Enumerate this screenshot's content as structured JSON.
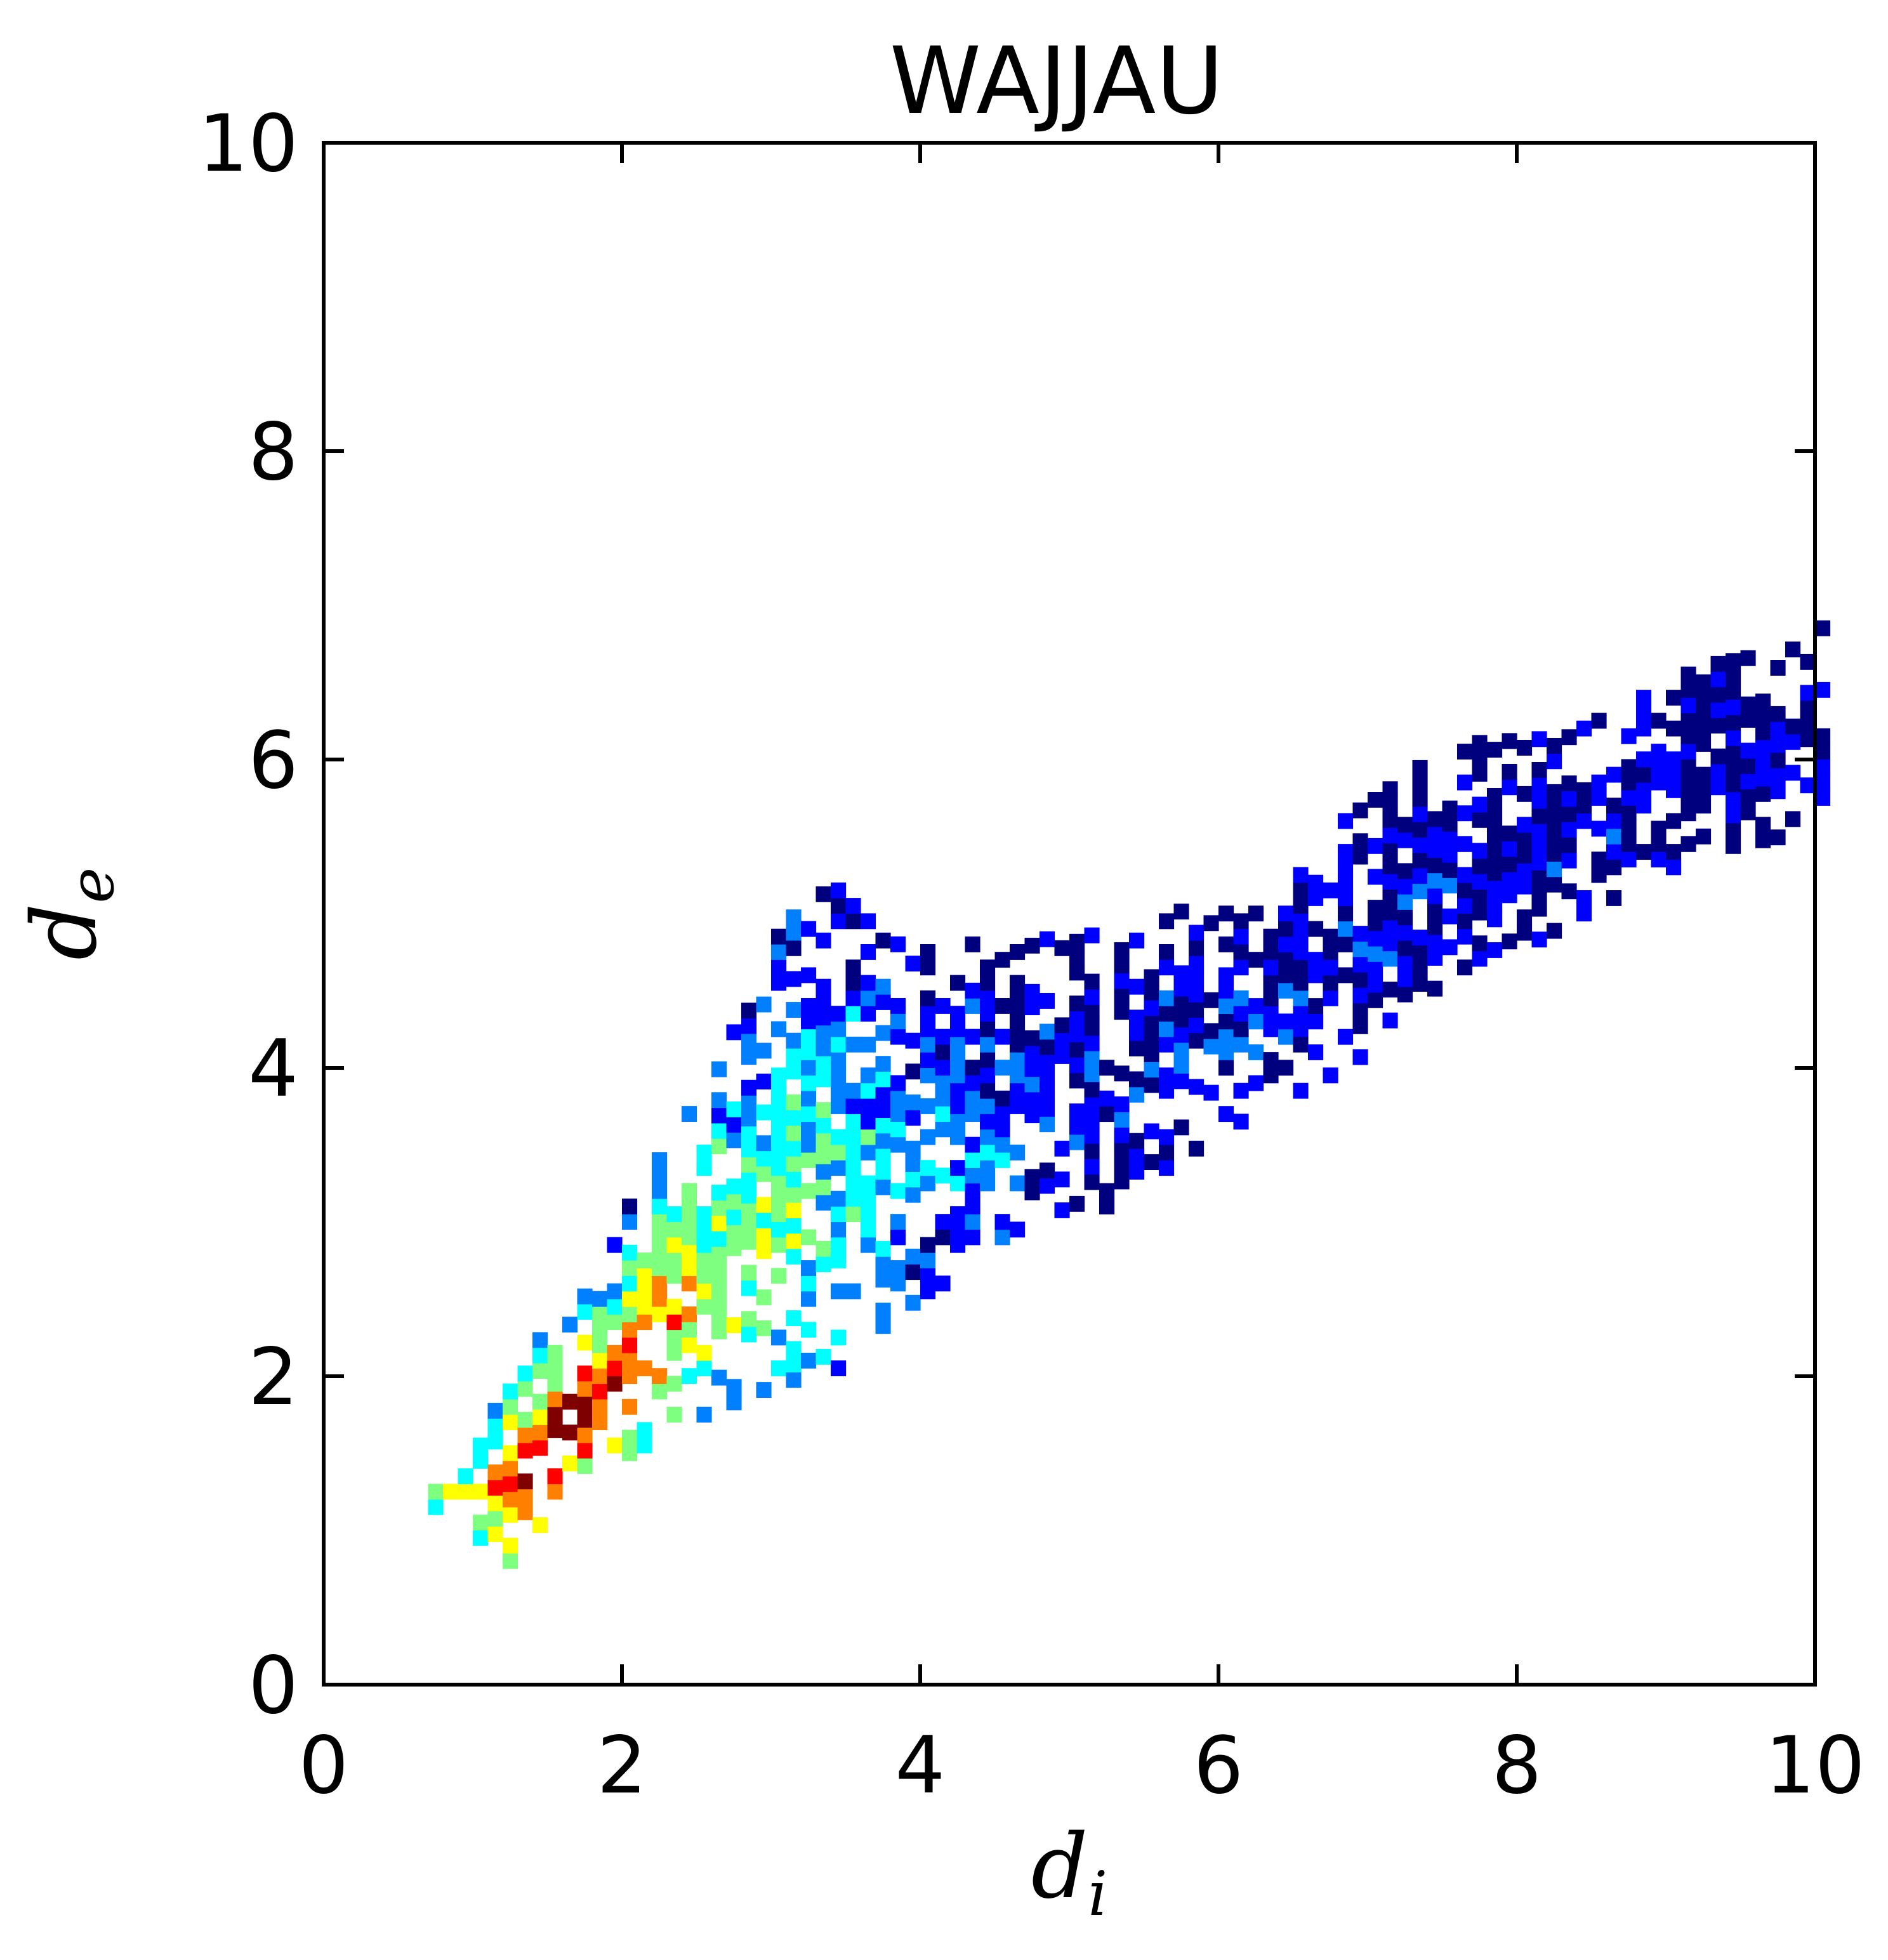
{
  "chart_data": {
    "type": "heatmap",
    "title": "WAJJAU",
    "xlabel": {
      "main": "d",
      "sub": "i"
    },
    "ylabel": {
      "main": "d",
      "sub": "e"
    },
    "xlim": [
      0,
      10
    ],
    "ylim": [
      0,
      10
    ],
    "xticks": [
      "0",
      "2",
      "4",
      "6",
      "8",
      "10"
    ],
    "yticks": [
      "0",
      "2",
      "4",
      "6",
      "8",
      "10"
    ],
    "grid": false,
    "legend": "none",
    "colormap": "jet",
    "colors": [
      "#00007f",
      "#0000ff",
      "#007fff",
      "#00ffff",
      "#7fff7f",
      "#ffff00",
      "#ff7f00",
      "#ff0000",
      "#7f0000"
    ],
    "bin_size": 0.1,
    "density_ridges": [
      {
        "x": 0.8,
        "lo": 1.1,
        "hi": 1.4,
        "peak": 0.55
      },
      {
        "x": 1.0,
        "lo": 0.9,
        "hi": 1.7,
        "peak": 0.6
      },
      {
        "x": 1.2,
        "lo": 0.75,
        "hi": 2.1,
        "peak": 0.85
      },
      {
        "x": 1.5,
        "lo": 1.1,
        "hi": 2.3,
        "peak": 1.0
      },
      {
        "x": 1.8,
        "lo": 1.35,
        "hi": 2.65,
        "peak": 0.88
      },
      {
        "x": 2.1,
        "lo": 1.5,
        "hi": 3.3,
        "peak": 0.75
      },
      {
        "x": 2.5,
        "lo": 1.7,
        "hi": 3.9,
        "peak": 0.62
      },
      {
        "x": 3.0,
        "lo": 1.9,
        "hi": 4.9,
        "peak": 0.5
      },
      {
        "x": 3.4,
        "lo": 2.0,
        "hi": 5.35,
        "peak": 0.44
      },
      {
        "x": 3.6,
        "lo": 2.2,
        "hi": 5.0,
        "peak": 0.4
      },
      {
        "x": 4.0,
        "lo": 2.5,
        "hi": 4.75,
        "peak": 0.3
      },
      {
        "x": 4.6,
        "lo": 2.8,
        "hi": 4.8,
        "peak": 0.22
      },
      {
        "x": 5.2,
        "lo": 3.05,
        "hi": 4.9,
        "peak": 0.2
      },
      {
        "x": 6.0,
        "lo": 3.55,
        "hi": 5.05,
        "peak": 0.18
      },
      {
        "x": 6.8,
        "lo": 3.95,
        "hi": 5.6,
        "peak": 0.16
      },
      {
        "x": 7.6,
        "lo": 4.5,
        "hi": 6.1,
        "peak": 0.14
      },
      {
        "x": 8.4,
        "lo": 4.95,
        "hi": 6.25,
        "peak": 0.13
      },
      {
        "x": 9.2,
        "lo": 5.35,
        "hi": 6.6,
        "peak": 0.12
      },
      {
        "x": 10.0,
        "lo": 5.5,
        "hi": 6.8,
        "peak": 0.11
      }
    ]
  }
}
